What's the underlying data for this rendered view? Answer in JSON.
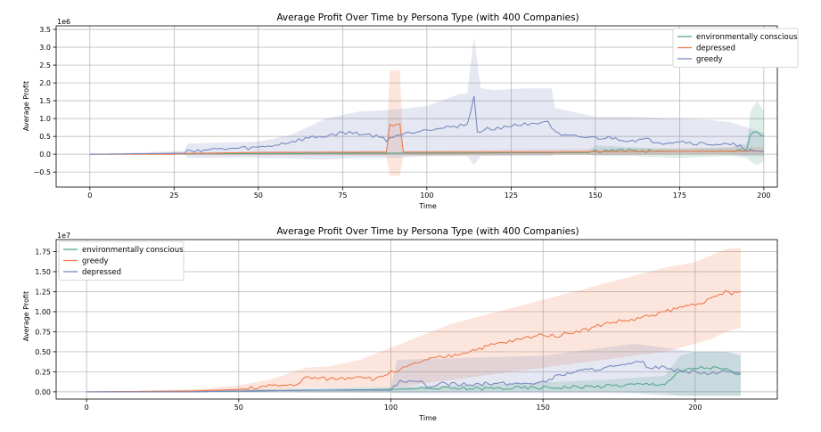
{
  "chart_data": [
    {
      "type": "line",
      "title": "Average Profit Over Time by Persona Type (with 400 Companies)",
      "xlabel": "Time",
      "ylabel": "Average Profit",
      "offset_label": "1e6",
      "xlim": [
        -10,
        204
      ],
      "ylim": [
        -0.92,
        3.6
      ],
      "xticks": [
        0,
        25,
        50,
        75,
        100,
        125,
        150,
        175,
        200
      ],
      "yticks": [
        -0.5,
        0.0,
        0.5,
        1.0,
        1.5,
        2.0,
        2.5,
        3.0,
        3.5
      ],
      "ytick_labels": [
        "−0.5",
        "0.0",
        "0.5",
        "1.0",
        "1.5",
        "2.0",
        "2.5",
        "3.0",
        "3.5"
      ],
      "grid": true,
      "legend_position": "top-right",
      "series": [
        {
          "name": "environmentally conscious",
          "color": "#55a88b",
          "x": [
            0,
            50,
            100,
            148,
            150,
            160,
            175,
            190,
            195,
            196,
            198,
            200
          ],
          "y": [
            0,
            0.02,
            0.03,
            0.05,
            0.1,
            0.1,
            0.08,
            0.09,
            0.12,
            0.6,
            0.6,
            0.5
          ],
          "band_x": [
            0,
            148,
            150,
            160,
            175,
            190,
            195,
            196,
            198,
            200
          ],
          "band_lo": [
            0,
            0.0,
            -0.05,
            -0.05,
            -0.1,
            -0.05,
            -0.1,
            -0.2,
            -0.3,
            -0.2
          ],
          "band_hi": [
            0,
            0.1,
            0.25,
            0.2,
            0.15,
            0.2,
            0.3,
            1.2,
            1.5,
            1.2
          ]
        },
        {
          "name": "depressed",
          "color": "#ee7b4f",
          "x": [
            0,
            25,
            28,
            50,
            88,
            89,
            92,
            93,
            100,
            140,
            150,
            175,
            200
          ],
          "y": [
            0,
            0.0,
            0.02,
            0.05,
            0.06,
            0.82,
            0.82,
            0.06,
            0.06,
            0.06,
            0.07,
            0.08,
            0.09
          ],
          "band_x": [
            0,
            28,
            88,
            89,
            92,
            93,
            150,
            200
          ],
          "band_lo": [
            0,
            -0.02,
            -0.05,
            -0.6,
            -0.6,
            -0.05,
            -0.02,
            0.0
          ],
          "band_hi": [
            0,
            0.05,
            0.1,
            2.35,
            2.35,
            0.1,
            0.15,
            0.2
          ]
        },
        {
          "name": "greedy",
          "color": "#7b8ac0",
          "x": [
            0,
            10,
            20,
            28,
            29,
            35,
            40,
            45,
            50,
            55,
            60,
            65,
            70,
            75,
            80,
            85,
            88,
            90,
            95,
            100,
            105,
            110,
            112,
            114,
            115,
            118,
            122,
            125,
            130,
            133,
            136,
            138,
            140,
            145,
            150,
            155,
            160,
            165,
            170,
            175,
            180,
            185,
            190,
            193,
            195,
            200
          ],
          "y": [
            0,
            0.01,
            0.02,
            0.03,
            0.1,
            0.12,
            0.14,
            0.16,
            0.18,
            0.25,
            0.35,
            0.45,
            0.5,
            0.6,
            0.58,
            0.5,
            0.4,
            0.5,
            0.6,
            0.7,
            0.75,
            0.8,
            0.85,
            1.6,
            0.6,
            0.7,
            0.75,
            0.8,
            0.85,
            0.9,
            0.92,
            0.6,
            0.5,
            0.48,
            0.45,
            0.45,
            0.38,
            0.4,
            0.32,
            0.36,
            0.3,
            0.28,
            0.25,
            0.28,
            0.1,
            0.08
          ],
          "band_x": [
            0,
            28,
            29,
            50,
            60,
            70,
            80,
            90,
            100,
            110,
            112,
            114,
            116,
            120,
            130,
            137,
            138,
            150,
            160,
            175,
            185,
            190,
            195,
            200
          ],
          "band_lo": [
            0,
            0.0,
            -0.1,
            -0.1,
            -0.12,
            -0.15,
            -0.1,
            -0.1,
            -0.05,
            -0.05,
            -0.05,
            -0.3,
            -0.05,
            -0.05,
            -0.05,
            -0.05,
            0.0,
            0.0,
            0.0,
            0.0,
            0.0,
            0.0,
            -0.05,
            -0.05
          ],
          "band_hi": [
            0,
            0.1,
            0.3,
            0.35,
            0.55,
            1.0,
            1.2,
            1.25,
            1.35,
            1.7,
            1.7,
            3.3,
            1.85,
            1.8,
            1.85,
            1.85,
            1.3,
            1.05,
            1.05,
            1.0,
            0.95,
            0.9,
            0.75,
            0.6
          ]
        }
      ]
    },
    {
      "type": "line",
      "title": "Average Profit Over Time by Persona Type (with 400 Companies)",
      "xlabel": "Time",
      "ylabel": "Average Profit",
      "offset_label": "1e7",
      "xlim": [
        -10,
        227
      ],
      "ylim": [
        -0.09,
        1.9
      ],
      "xticks": [
        0,
        50,
        100,
        150,
        200
      ],
      "yticks": [
        0.0,
        0.25,
        0.5,
        0.75,
        1.0,
        1.25,
        1.5,
        1.75
      ],
      "ytick_labels": [
        "0.00",
        "0.25",
        "0.50",
        "0.75",
        "1.00",
        "1.25",
        "1.50",
        "1.75"
      ],
      "grid": true,
      "legend_position": "top-left",
      "series": [
        {
          "name": "environmentally conscious",
          "color": "#55a88b",
          "x": [
            0,
            35,
            50,
            75,
            100,
            110,
            130,
            150,
            160,
            170,
            180,
            190,
            195,
            200,
            205,
            210,
            212,
            215
          ],
          "y": [
            0,
            0.0,
            0.01,
            0.02,
            0.03,
            0.04,
            0.04,
            0.05,
            0.06,
            0.07,
            0.09,
            0.1,
            0.25,
            0.3,
            0.3,
            0.28,
            0.24,
            0.22
          ],
          "band_x": [
            0,
            100,
            140,
            170,
            190,
            195,
            200,
            210,
            215
          ],
          "band_lo": [
            0,
            -0.01,
            0.0,
            0.0,
            -0.02,
            -0.05,
            -0.05,
            -0.05,
            -0.05
          ],
          "band_hi": [
            0,
            0.06,
            0.1,
            0.15,
            0.2,
            0.45,
            0.5,
            0.5,
            0.45
          ]
        },
        {
          "name": "greedy",
          "color": "#ee7b4f",
          "x": [
            0,
            35,
            50,
            55,
            60,
            65,
            70,
            72,
            75,
            80,
            85,
            90,
            95,
            100,
            105,
            110,
            115,
            120,
            125,
            130,
            135,
            140,
            145,
            150,
            155,
            160,
            165,
            170,
            175,
            180,
            185,
            190,
            195,
            200,
            205,
            210,
            212,
            215
          ],
          "y": [
            0,
            0.01,
            0.03,
            0.05,
            0.07,
            0.08,
            0.1,
            0.18,
            0.17,
            0.16,
            0.17,
            0.2,
            0.15,
            0.25,
            0.3,
            0.38,
            0.42,
            0.45,
            0.5,
            0.55,
            0.6,
            0.63,
            0.68,
            0.72,
            0.7,
            0.75,
            0.78,
            0.85,
            0.88,
            0.9,
            0.95,
            1.0,
            1.05,
            1.1,
            1.15,
            1.25,
            1.22,
            1.25
          ],
          "band_x": [
            0,
            35,
            50,
            60,
            72,
            80,
            90,
            100,
            110,
            120,
            130,
            140,
            150,
            160,
            170,
            180,
            190,
            200,
            205,
            210,
            215
          ],
          "band_lo": [
            0,
            0.0,
            0.0,
            0.02,
            0.05,
            0.05,
            0.05,
            0.05,
            0.1,
            0.15,
            0.2,
            0.25,
            0.3,
            0.35,
            0.4,
            0.45,
            0.5,
            0.6,
            0.65,
            0.75,
            0.8
          ],
          "band_hi": [
            0,
            0.03,
            0.08,
            0.15,
            0.3,
            0.32,
            0.4,
            0.55,
            0.7,
            0.85,
            0.95,
            1.05,
            1.15,
            1.25,
            1.35,
            1.45,
            1.55,
            1.62,
            1.7,
            1.78,
            1.8
          ]
        },
        {
          "name": "depressed",
          "color": "#7b8ac0",
          "x": [
            0,
            35,
            50,
            75,
            100,
            103,
            110,
            112,
            115,
            120,
            130,
            140,
            150,
            155,
            160,
            170,
            175,
            180,
            182,
            185,
            190,
            195,
            200,
            205,
            210,
            215
          ],
          "y": [
            0,
            0.0,
            0.01,
            0.02,
            0.02,
            0.12,
            0.12,
            0.05,
            0.1,
            0.1,
            0.1,
            0.1,
            0.12,
            0.2,
            0.25,
            0.3,
            0.32,
            0.35,
            0.38,
            0.3,
            0.3,
            0.25,
            0.25,
            0.22,
            0.25,
            0.22
          ],
          "band_x": [
            0,
            100,
            102,
            150,
            160,
            170,
            180,
            190,
            200,
            210,
            215
          ],
          "band_lo": [
            0,
            -0.01,
            -0.02,
            -0.02,
            -0.02,
            -0.02,
            -0.02,
            -0.05,
            -0.05,
            -0.05,
            -0.05
          ],
          "band_hi": [
            0,
            0.05,
            0.4,
            0.45,
            0.5,
            0.55,
            0.6,
            0.55,
            0.5,
            0.5,
            0.48
          ]
        }
      ]
    }
  ]
}
